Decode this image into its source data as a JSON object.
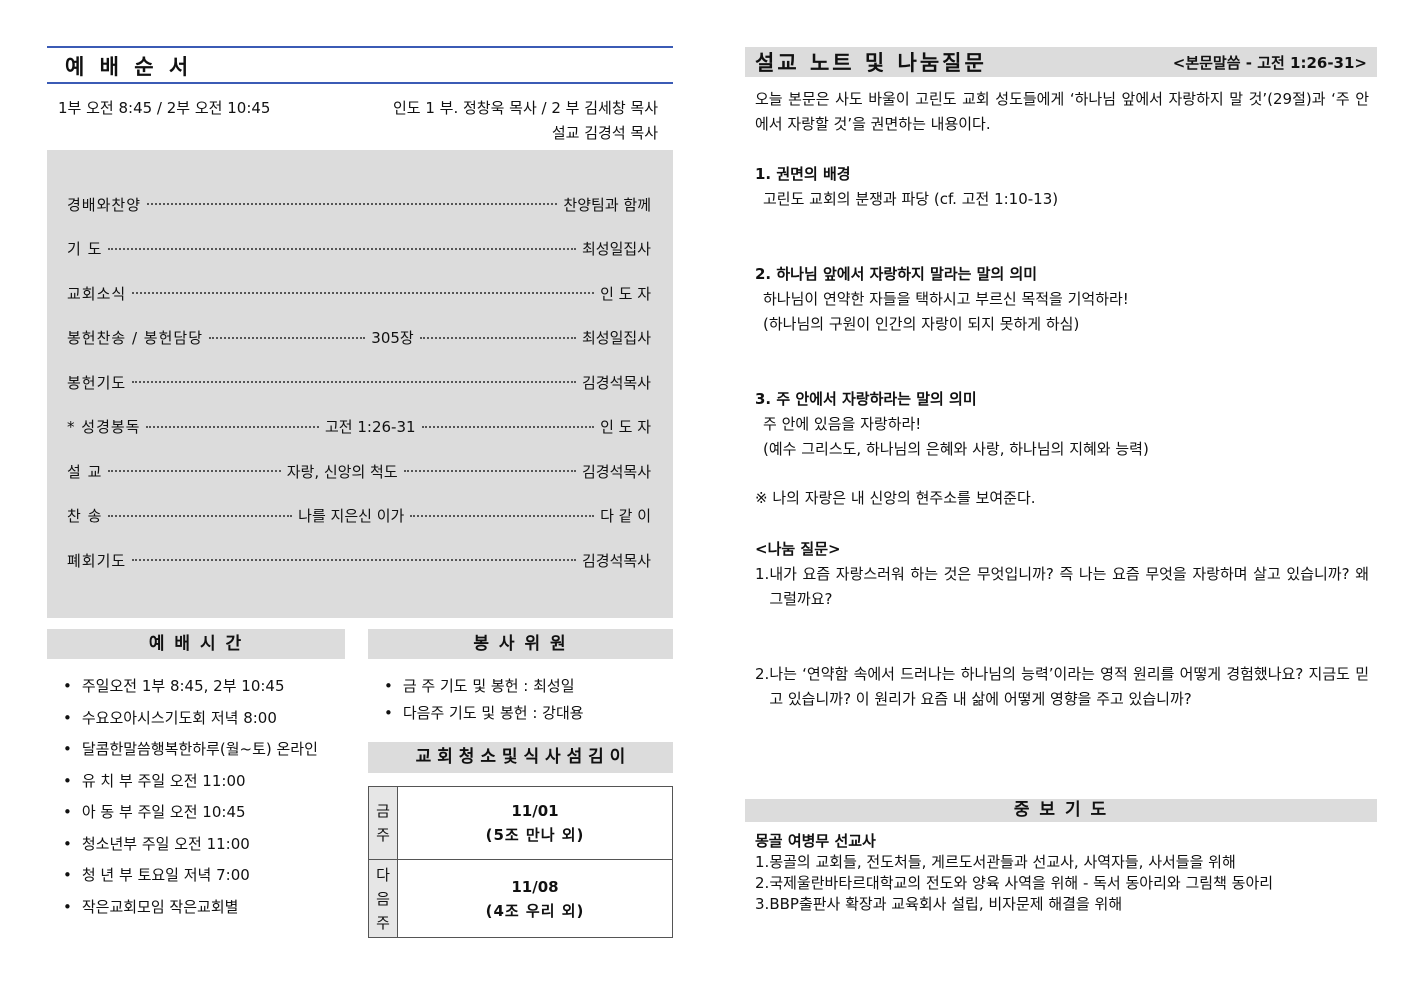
{
  "worship_order": {
    "title": "예 배 순 서",
    "times": "1부 오전 8:45 / 2부 오전 10:45",
    "leaders": [
      "인도 1 부. 정창욱 목사 /  2 부 김세창 목사",
      "설교 김경석 목사"
    ],
    "items": [
      {
        "name": "경배와찬양",
        "person": "찬양팀과 함께"
      },
      {
        "name": "기 도",
        "person": "최성일집사"
      },
      {
        "name": "교회소식",
        "person": "인 도 자"
      },
      {
        "name": "봉헌찬송 / 봉헌담당",
        "middle": "305장",
        "person": "최성일집사"
      },
      {
        "name": "봉헌기도",
        "person": "김경석목사"
      },
      {
        "name": "* 성경봉독",
        "middle": "고전 1:26-31",
        "person": "인 도 자"
      },
      {
        "name": "설 교",
        "middle": "자랑, 신앙의 척도",
        "person": "김경석목사"
      },
      {
        "name": "찬 송",
        "middle": "나를 지은신 이가",
        "person": "다 같 이"
      },
      {
        "name": "폐회기도",
        "person": "김경석목사"
      }
    ]
  },
  "service_times": {
    "title": "예 배 시 간",
    "items": [
      "주일오전 1부 8:45, 2부 10:45",
      "수요오아시스기도회  저녁 8:00",
      "달콤한말씀행복한하루(월~토) 온라인",
      "유 치 부  주일 오전 11:00",
      "아 동 부  주일 오전 10:45",
      "청소년부  주일 오전 11:00",
      "청 년 부  토요일 저녁 7:00",
      "작은교회모임 작은교회별"
    ]
  },
  "volunteers": {
    "title": "봉 사 위 원",
    "items": [
      "금  주 기도 및 봉헌 : 최성일",
      "다음주 기도 및 봉헌 : 강대용"
    ]
  },
  "cleaning": {
    "title": "교 회 청 소 및 식 사 섬 김 이",
    "rows": [
      {
        "week": "금주",
        "date": "11/01",
        "group": "(5조 만나 외)"
      },
      {
        "week": "다음주",
        "date": "11/08",
        "group": "(4조 우리 외)"
      }
    ]
  },
  "sermon_notes": {
    "title": "설교 노트 및 나눔질문",
    "passage": "<본문말씀 - 고전 1:26-31>",
    "intro": "오늘 본문은 사도 바울이 고린도 교회 성도들에게 ‘하나님 앞에서 자랑하지 말 것’(29절)과 ‘주 안에서 자랑할 것’을 권면하는 내용이다.",
    "sections": [
      {
        "heading": "1. 권면의 배경",
        "lines": [
          "고린도 교회의 분쟁과 파당 (cf. 고전 1:10-13)"
        ]
      },
      {
        "heading": "2. 하나님 앞에서 자랑하지 말라는 말의 의미",
        "lines": [
          "하나님이 연약한 자들을 택하시고 부르신 목적을 기억하라!",
          "(하나님의 구원이 인간의 자랑이 되지 못하게 하심)"
        ]
      },
      {
        "heading": "3. 주 안에서 자랑하라는 말의 의미",
        "lines": [
          "주 안에 있음을 자랑하라!",
          "(예수 그리스도, 하나님의 은혜와 사랑, 하나님의 지혜와 능력)"
        ]
      }
    ],
    "note": "※ 나의 자랑은 내 신앙의 현주소를 보여준다.",
    "questions_title": "<나눔 질문>",
    "questions": [
      {
        "number": "1.",
        "text": "내가 요즘 자랑스러워 하는 것은 무엇입니까? 즉 나는 요즘 무엇을 자랑하며 살고 있습니까? 왜 그럴까요?"
      },
      {
        "number": "2.",
        "text": "나는 ‘연약함 속에서 드러나는 하나님의 능력’이라는 영적 원리를 어떻게 경험했나요? 지금도 믿고 있습니까? 이 원리가 요즘 내 삶에 어떻게 영향을 주고 있습니까?"
      }
    ]
  },
  "prayer": {
    "title": "중 보 기 도",
    "subject": "몽골 여병무 선교사",
    "items": [
      {
        "number": "1.",
        "text": "몽골의 교회들, 전도처들, 게르도서관들과 선교사, 사역자들, 사서들을 위해"
      },
      {
        "number": "2.",
        "text": "국제울란바타르대학교의 전도와 양육 사역을 위해 - 독서 동아리와 그림책 동아리"
      },
      {
        "number": "3.",
        "text": "BBP출판사 확장과 교육회사 설립, 비자문제 해결을 위해"
      }
    ]
  }
}
